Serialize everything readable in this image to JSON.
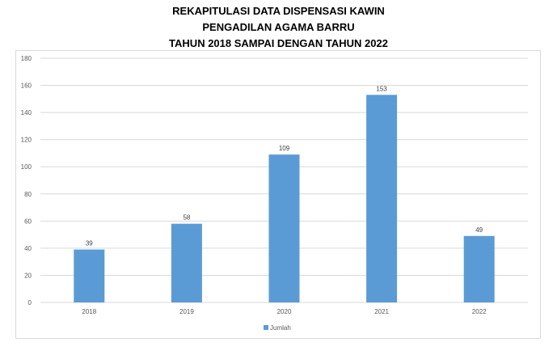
{
  "title": {
    "line1": "REKAPITULASI DATA DISPENSASI KAWIN",
    "line2": "PENGADILAN AGAMA BARRU",
    "line3": "TAHUN 2018 SAMPAI DENGAN TAHUN 2022"
  },
  "colors": {
    "bar": "#5b9bd5",
    "grid": "#d9d9d9",
    "axis_text": "#595959"
  },
  "chart_data": {
    "type": "bar",
    "title": "REKAPITULASI DATA DISPENSASI KAWIN PENGADILAN AGAMA BARRU TAHUN 2018 SAMPAI DENGAN TAHUN 2022",
    "categories": [
      "2018",
      "2019",
      "2020",
      "2021",
      "2022"
    ],
    "series": [
      {
        "name": "Jumlah",
        "values": [
          39,
          58,
          109,
          153,
          49
        ]
      }
    ],
    "xlabel": "",
    "ylabel": "",
    "ylim": [
      0,
      180
    ],
    "yticks": [
      0,
      20,
      40,
      60,
      80,
      100,
      120,
      140,
      160,
      180
    ],
    "grid": true,
    "data_labels": true,
    "legend": "bottom"
  }
}
